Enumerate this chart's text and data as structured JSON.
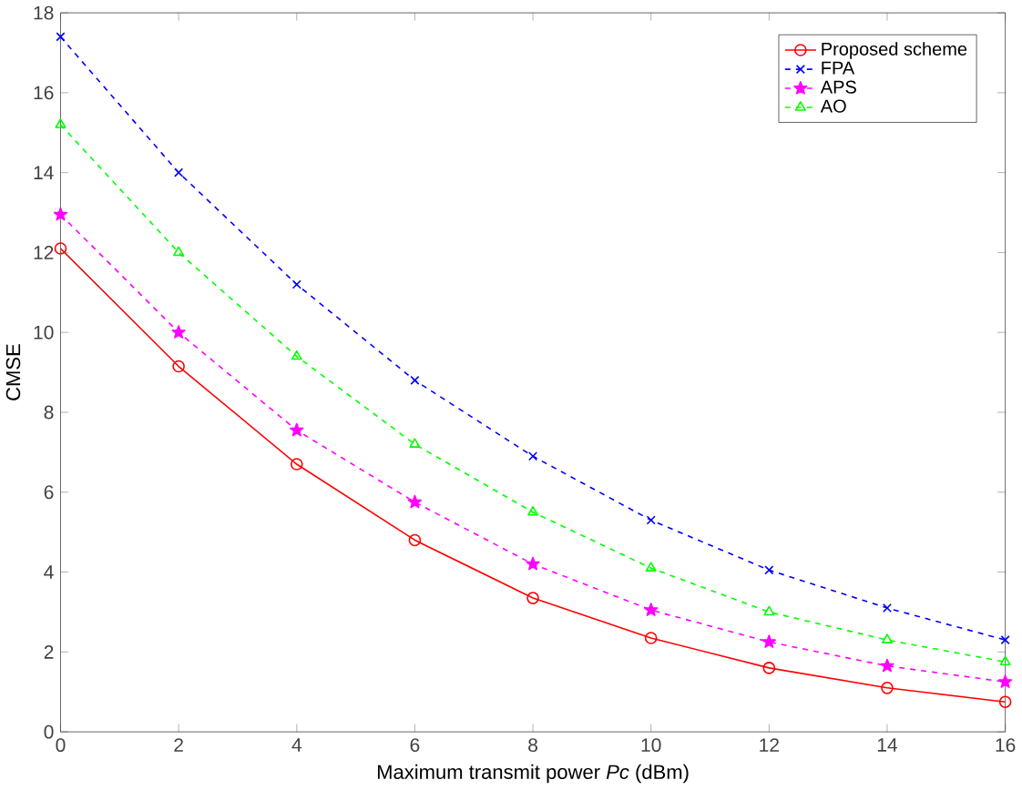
{
  "chart_data": {
    "type": "line",
    "xlabel": "Maximum transmit power *Pc* (dBm)",
    "ylabel": "CMSE",
    "x": [
      0,
      2,
      4,
      6,
      8,
      10,
      12,
      14,
      16
    ],
    "xlim": [
      0,
      16
    ],
    "xticks": [
      0,
      2,
      4,
      6,
      8,
      10,
      12,
      14,
      16
    ],
    "ylim": [
      0,
      18
    ],
    "yticks": [
      0,
      2,
      4,
      6,
      8,
      10,
      12,
      14,
      16,
      18
    ],
    "grid": false,
    "legend": "top right",
    "series": [
      {
        "name": "Proposed scheme",
        "color": "#ff0000",
        "marker": "circle",
        "line_style": "solid",
        "values": [
          12.1,
          9.15,
          6.7,
          4.8,
          3.35,
          2.35,
          1.6,
          1.1,
          0.75
        ]
      },
      {
        "name": "FPA",
        "color": "#0000ff",
        "marker": "cross",
        "line_style": "dashed",
        "values": [
          17.4,
          14.0,
          11.2,
          8.8,
          6.9,
          5.3,
          4.05,
          3.1,
          2.3
        ]
      },
      {
        "name": "APS",
        "color": "#ff00ff",
        "marker": "star",
        "line_style": "dashed",
        "values": [
          12.95,
          10.0,
          7.55,
          5.75,
          4.2,
          3.05,
          2.25,
          1.65,
          1.25
        ]
      },
      {
        "name": "AO",
        "color": "#00ff00",
        "marker": "triangle",
        "line_style": "dashed",
        "values": [
          15.2,
          12.0,
          9.4,
          7.2,
          5.5,
          4.1,
          3.0,
          2.3,
          1.75
        ]
      }
    ]
  }
}
